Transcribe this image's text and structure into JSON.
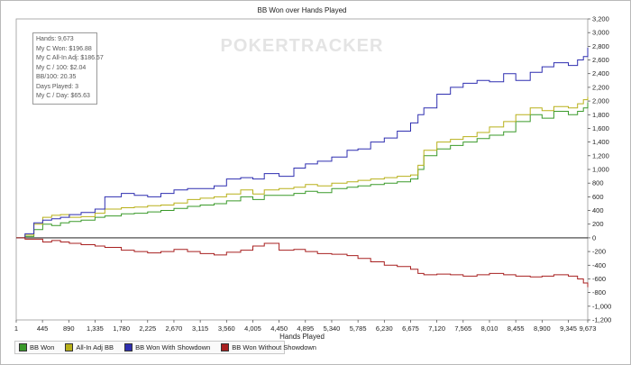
{
  "chart_data": {
    "type": "line",
    "title": "BB Won over Hands Played",
    "xlabel": "Hands Played",
    "ylabel": "",
    "watermark": "POKERTRACKER",
    "xlim": [
      1,
      9673
    ],
    "ylim": [
      -1200,
      3200
    ],
    "x_ticks": [
      "1",
      "445",
      "890",
      "1,335",
      "1,780",
      "2,225",
      "2,670",
      "3,115",
      "3,560",
      "4,005",
      "4,450",
      "4,895",
      "5,340",
      "5,785",
      "6,230",
      "6,675",
      "7,120",
      "7,565",
      "8,010",
      "8,455",
      "8,900",
      "9,345",
      "9,673"
    ],
    "y_ticks": [
      "-1,200",
      "-1,000",
      "-800",
      "-600",
      "-400",
      "-200",
      "0",
      "200",
      "400",
      "600",
      "800",
      "1,000",
      "1,200",
      "1,400",
      "1,600",
      "1,800",
      "2,000",
      "2,200",
      "2,400",
      "2,600",
      "2,800",
      "3,000",
      "3,200"
    ],
    "stats": [
      "Hands: 9,673",
      "My C Won: $196.88",
      "My C All-In Adj: $186.57",
      "My C / 100: $2.04",
      "BB/100: 20.35",
      "Days Played: 3",
      "My C / Day: $65.63"
    ],
    "series": [
      {
        "name": "BB Won",
        "color": "#3a9a2a",
        "x": [
          1,
          150,
          300,
          450,
          600,
          750,
          900,
          1100,
          1335,
          1500,
          1780,
          2000,
          2225,
          2450,
          2670,
          2900,
          3115,
          3350,
          3560,
          3800,
          4005,
          4200,
          4450,
          4700,
          4895,
          5100,
          5340,
          5600,
          5785,
          6000,
          6230,
          6450,
          6675,
          6800,
          6900,
          7120,
          7350,
          7565,
          7800,
          8010,
          8250,
          8455,
          8700,
          8900,
          9100,
          9345,
          9500,
          9600,
          9673
        ],
        "y": [
          0,
          20,
          120,
          200,
          180,
          220,
          240,
          260,
          300,
          320,
          350,
          360,
          380,
          400,
          430,
          460,
          480,
          500,
          540,
          600,
          560,
          620,
          620,
          650,
          680,
          660,
          720,
          740,
          760,
          780,
          800,
          820,
          860,
          1000,
          1200,
          1300,
          1350,
          1400,
          1450,
          1500,
          1550,
          1700,
          1800,
          1750,
          1850,
          1800,
          1850,
          1900,
          1980
        ]
      },
      {
        "name": "All-In Adj BB",
        "color": "#b8b01a",
        "x": [
          1,
          150,
          300,
          450,
          600,
          750,
          900,
          1100,
          1335,
          1500,
          1780,
          2000,
          2225,
          2450,
          2670,
          2900,
          3115,
          3350,
          3560,
          3800,
          4005,
          4200,
          4450,
          4700,
          4895,
          5100,
          5340,
          5600,
          5785,
          6000,
          6230,
          6450,
          6675,
          6800,
          6900,
          7120,
          7350,
          7565,
          7800,
          8010,
          8250,
          8455,
          8700,
          8900,
          9100,
          9345,
          9500,
          9600,
          9673
        ],
        "y": [
          0,
          40,
          200,
          300,
          330,
          340,
          300,
          310,
          360,
          420,
          440,
          450,
          470,
          480,
          510,
          560,
          580,
          600,
          640,
          700,
          640,
          700,
          720,
          740,
          780,
          760,
          800,
          820,
          840,
          860,
          880,
          900,
          920,
          1060,
          1280,
          1400,
          1440,
          1480,
          1540,
          1620,
          1700,
          1800,
          1900,
          1860,
          1920,
          1900,
          1960,
          2020,
          2060
        ]
      },
      {
        "name": "BB Won With Showdown",
        "color": "#2f2fb0",
        "x": [
          1,
          150,
          300,
          450,
          600,
          750,
          900,
          1100,
          1335,
          1500,
          1780,
          2000,
          2225,
          2450,
          2670,
          2900,
          3115,
          3350,
          3560,
          3800,
          4005,
          4200,
          4450,
          4700,
          4895,
          5100,
          5340,
          5600,
          5785,
          6000,
          6230,
          6450,
          6675,
          6800,
          6900,
          7120,
          7350,
          7565,
          7800,
          8010,
          8250,
          8455,
          8700,
          8900,
          9100,
          9345,
          9500,
          9600,
          9673
        ],
        "y": [
          0,
          60,
          220,
          260,
          280,
          300,
          340,
          370,
          420,
          600,
          650,
          620,
          600,
          650,
          700,
          720,
          720,
          760,
          860,
          880,
          860,
          940,
          900,
          1020,
          1080,
          1120,
          1180,
          1280,
          1300,
          1400,
          1460,
          1560,
          1680,
          1800,
          1900,
          2100,
          2200,
          2260,
          2300,
          2280,
          2400,
          2300,
          2420,
          2500,
          2560,
          2520,
          2600,
          2650,
          2780
        ]
      },
      {
        "name": "BB Won Without Showdown",
        "color": "#a82020",
        "x": [
          1,
          150,
          300,
          450,
          600,
          750,
          900,
          1100,
          1335,
          1500,
          1780,
          2000,
          2225,
          2450,
          2670,
          2900,
          3115,
          3350,
          3560,
          3800,
          4005,
          4200,
          4450,
          4700,
          4895,
          5100,
          5340,
          5600,
          5785,
          6000,
          6230,
          6450,
          6675,
          6800,
          6900,
          7120,
          7350,
          7565,
          7800,
          8010,
          8250,
          8455,
          8700,
          8900,
          9100,
          9345,
          9500,
          9600,
          9673
        ],
        "y": [
          0,
          -20,
          -20,
          -60,
          -40,
          -60,
          -80,
          -100,
          -120,
          -140,
          -180,
          -200,
          -220,
          -200,
          -170,
          -200,
          -230,
          -250,
          -210,
          -180,
          -120,
          -80,
          -180,
          -170,
          -200,
          -230,
          -240,
          -260,
          -300,
          -350,
          -400,
          -420,
          -460,
          -520,
          -540,
          -530,
          -540,
          -560,
          -540,
          -520,
          -540,
          -560,
          -570,
          -560,
          -540,
          -560,
          -600,
          -660,
          -720
        ]
      }
    ]
  }
}
